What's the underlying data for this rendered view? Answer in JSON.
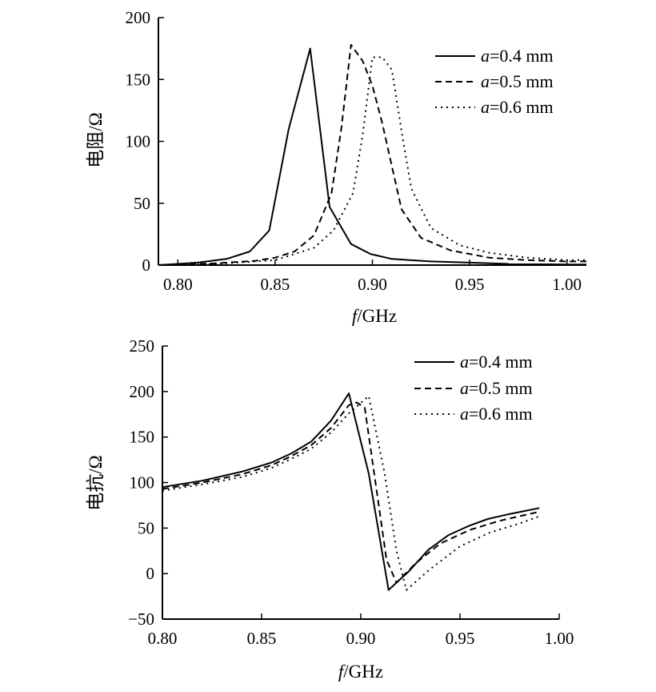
{
  "chart_data": [
    {
      "type": "line",
      "ylabel": "电阻/Ω",
      "xlabel_var": "f",
      "xlabel_unit": "/GHz",
      "xlim": [
        0.79,
        1.01
      ],
      "ylim": [
        0,
        200
      ],
      "xticks": [
        "0.80",
        "0.85",
        "0.90",
        "0.95",
        "1.00"
      ],
      "yticks": [
        "0",
        "50",
        "100",
        "150",
        "200"
      ],
      "legend_position": "top-right",
      "series": [
        {
          "name": "a=0.4 mm",
          "name_var": "a",
          "name_rest": "=0.4 mm",
          "style": "solid",
          "x": [
            0.79,
            0.8,
            0.81,
            0.825,
            0.837,
            0.847,
            0.857,
            0.868,
            0.878,
            0.889,
            0.899,
            0.91,
            0.93,
            0.95,
            0.97,
            1.0,
            1.01
          ],
          "y": [
            0,
            1,
            2,
            5,
            11,
            28,
            110,
            175,
            47,
            17,
            9,
            5,
            3,
            2,
            1,
            0.5,
            0.5
          ]
        },
        {
          "name": "a=0.5 mm",
          "name_var": "a",
          "name_rest": "=0.5 mm",
          "style": "dashed",
          "x": [
            0.79,
            0.8,
            0.82,
            0.84,
            0.85,
            0.86,
            0.87,
            0.879,
            0.884,
            0.889,
            0.895,
            0.9,
            0.905,
            0.91,
            0.915,
            0.925,
            0.94,
            0.96,
            0.98,
            1.0,
            1.01
          ],
          "y": [
            0,
            0.5,
            1.5,
            3.5,
            6,
            11,
            24,
            58,
            110,
            178,
            165,
            145,
            115,
            80,
            45,
            22,
            12,
            6,
            4,
            3,
            3
          ]
        },
        {
          "name": "a=0.6 mm",
          "name_var": "a",
          "name_rest": "=0.6 mm",
          "style": "dotted",
          "x": [
            0.79,
            0.82,
            0.85,
            0.87,
            0.88,
            0.89,
            0.895,
            0.9,
            0.905,
            0.91,
            0.915,
            0.92,
            0.93,
            0.945,
            0.96,
            0.98,
            1.0,
            1.01
          ],
          "y": [
            0,
            1,
            4,
            14,
            28,
            58,
            105,
            168,
            168,
            158,
            108,
            62,
            30,
            16,
            10,
            6,
            4,
            4
          ]
        }
      ]
    },
    {
      "type": "line",
      "ylabel": "电抗/Ω",
      "xlabel_var": "f",
      "xlabel_unit": "/GHz",
      "xlim": [
        0.8,
        1.0
      ],
      "ylim": [
        -50,
        250
      ],
      "xticks": [
        "0.80",
        "0.85",
        "0.90",
        "0.95",
        "1.00"
      ],
      "yticks": [
        "−50",
        "0",
        "50",
        "100",
        "150",
        "200",
        "250"
      ],
      "legend_position": "top-right",
      "series": [
        {
          "name": "a=0.4 mm",
          "name_var": "a",
          "name_rest": "=0.4 mm",
          "style": "solid",
          "x": [
            0.8,
            0.82,
            0.84,
            0.855,
            0.865,
            0.875,
            0.885,
            0.894,
            0.904,
            0.914,
            0.924,
            0.934,
            0.944,
            0.954,
            0.964,
            0.974,
            0.99
          ],
          "y": [
            95,
            102,
            112,
            122,
            132,
            145,
            168,
            198,
            110,
            -18,
            2,
            26,
            42,
            52,
            60,
            65,
            72
          ]
        },
        {
          "name": "a=0.5 mm",
          "name_var": "a",
          "name_rest": "=0.5 mm",
          "style": "dashed",
          "x": [
            0.8,
            0.82,
            0.84,
            0.855,
            0.865,
            0.875,
            0.885,
            0.894,
            0.898,
            0.902,
            0.913,
            0.918,
            0.928,
            0.94,
            0.955,
            0.97,
            0.99
          ],
          "y": [
            93,
            100,
            109,
            119,
            129,
            141,
            160,
            185,
            188,
            182,
            15,
            -10,
            12,
            33,
            48,
            58,
            68
          ]
        },
        {
          "name": "a=0.6 mm",
          "name_var": "a",
          "name_rest": "=0.6 mm",
          "style": "dotted",
          "x": [
            0.8,
            0.82,
            0.84,
            0.855,
            0.865,
            0.875,
            0.885,
            0.894,
            0.904,
            0.912,
            0.918,
            0.923,
            0.935,
            0.95,
            0.965,
            0.98,
            0.99
          ],
          "y": [
            91,
            98,
            106,
            116,
            126,
            137,
            155,
            176,
            195,
            110,
            25,
            -18,
            5,
            30,
            45,
            55,
            63
          ]
        }
      ]
    }
  ]
}
